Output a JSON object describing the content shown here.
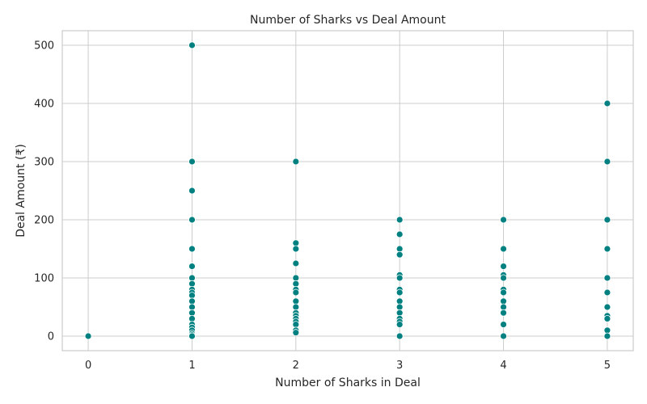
{
  "chart_data": {
    "type": "scatter",
    "title": "Number of Sharks vs Deal Amount",
    "xlabel": "Number of Sharks in Deal",
    "ylabel": "Deal Amount (₹)",
    "xlim": [
      -0.25,
      5.25
    ],
    "ylim": [
      -25,
      525
    ],
    "xticks": [
      0,
      1,
      2,
      3,
      4,
      5
    ],
    "yticks": [
      0,
      100,
      200,
      300,
      400,
      500
    ],
    "grid": true,
    "color": "#008080",
    "points": [
      [
        0,
        0
      ],
      [
        1,
        500
      ],
      [
        1,
        300
      ],
      [
        1,
        250
      ],
      [
        1,
        200
      ],
      [
        1,
        150
      ],
      [
        1,
        120
      ],
      [
        1,
        100
      ],
      [
        1,
        90
      ],
      [
        1,
        80
      ],
      [
        1,
        75
      ],
      [
        1,
        70
      ],
      [
        1,
        60
      ],
      [
        1,
        50
      ],
      [
        1,
        40
      ],
      [
        1,
        30
      ],
      [
        1,
        20
      ],
      [
        1,
        15
      ],
      [
        1,
        10
      ],
      [
        1,
        5
      ],
      [
        1,
        2
      ],
      [
        1,
        0
      ],
      [
        2,
        300
      ],
      [
        2,
        160
      ],
      [
        2,
        150
      ],
      [
        2,
        125
      ],
      [
        2,
        100
      ],
      [
        2,
        90
      ],
      [
        2,
        80
      ],
      [
        2,
        75
      ],
      [
        2,
        60
      ],
      [
        2,
        50
      ],
      [
        2,
        40
      ],
      [
        2,
        35
      ],
      [
        2,
        30
      ],
      [
        2,
        25
      ],
      [
        2,
        20
      ],
      [
        2,
        10
      ],
      [
        2,
        6
      ],
      [
        3,
        200
      ],
      [
        3,
        175
      ],
      [
        3,
        150
      ],
      [
        3,
        140
      ],
      [
        3,
        105
      ],
      [
        3,
        100
      ],
      [
        3,
        80
      ],
      [
        3,
        75
      ],
      [
        3,
        60
      ],
      [
        3,
        50
      ],
      [
        3,
        40
      ],
      [
        3,
        30
      ],
      [
        3,
        25
      ],
      [
        3,
        20
      ],
      [
        3,
        0
      ],
      [
        4,
        200
      ],
      [
        4,
        150
      ],
      [
        4,
        120
      ],
      [
        4,
        105
      ],
      [
        4,
        100
      ],
      [
        4,
        80
      ],
      [
        4,
        75
      ],
      [
        4,
        60
      ],
      [
        4,
        50
      ],
      [
        4,
        40
      ],
      [
        4,
        20
      ],
      [
        4,
        0
      ],
      [
        5,
        400
      ],
      [
        5,
        300
      ],
      [
        5,
        200
      ],
      [
        5,
        150
      ],
      [
        5,
        100
      ],
      [
        5,
        75
      ],
      [
        5,
        50
      ],
      [
        5,
        35
      ],
      [
        5,
        30
      ],
      [
        5,
        10
      ],
      [
        5,
        0
      ]
    ]
  }
}
